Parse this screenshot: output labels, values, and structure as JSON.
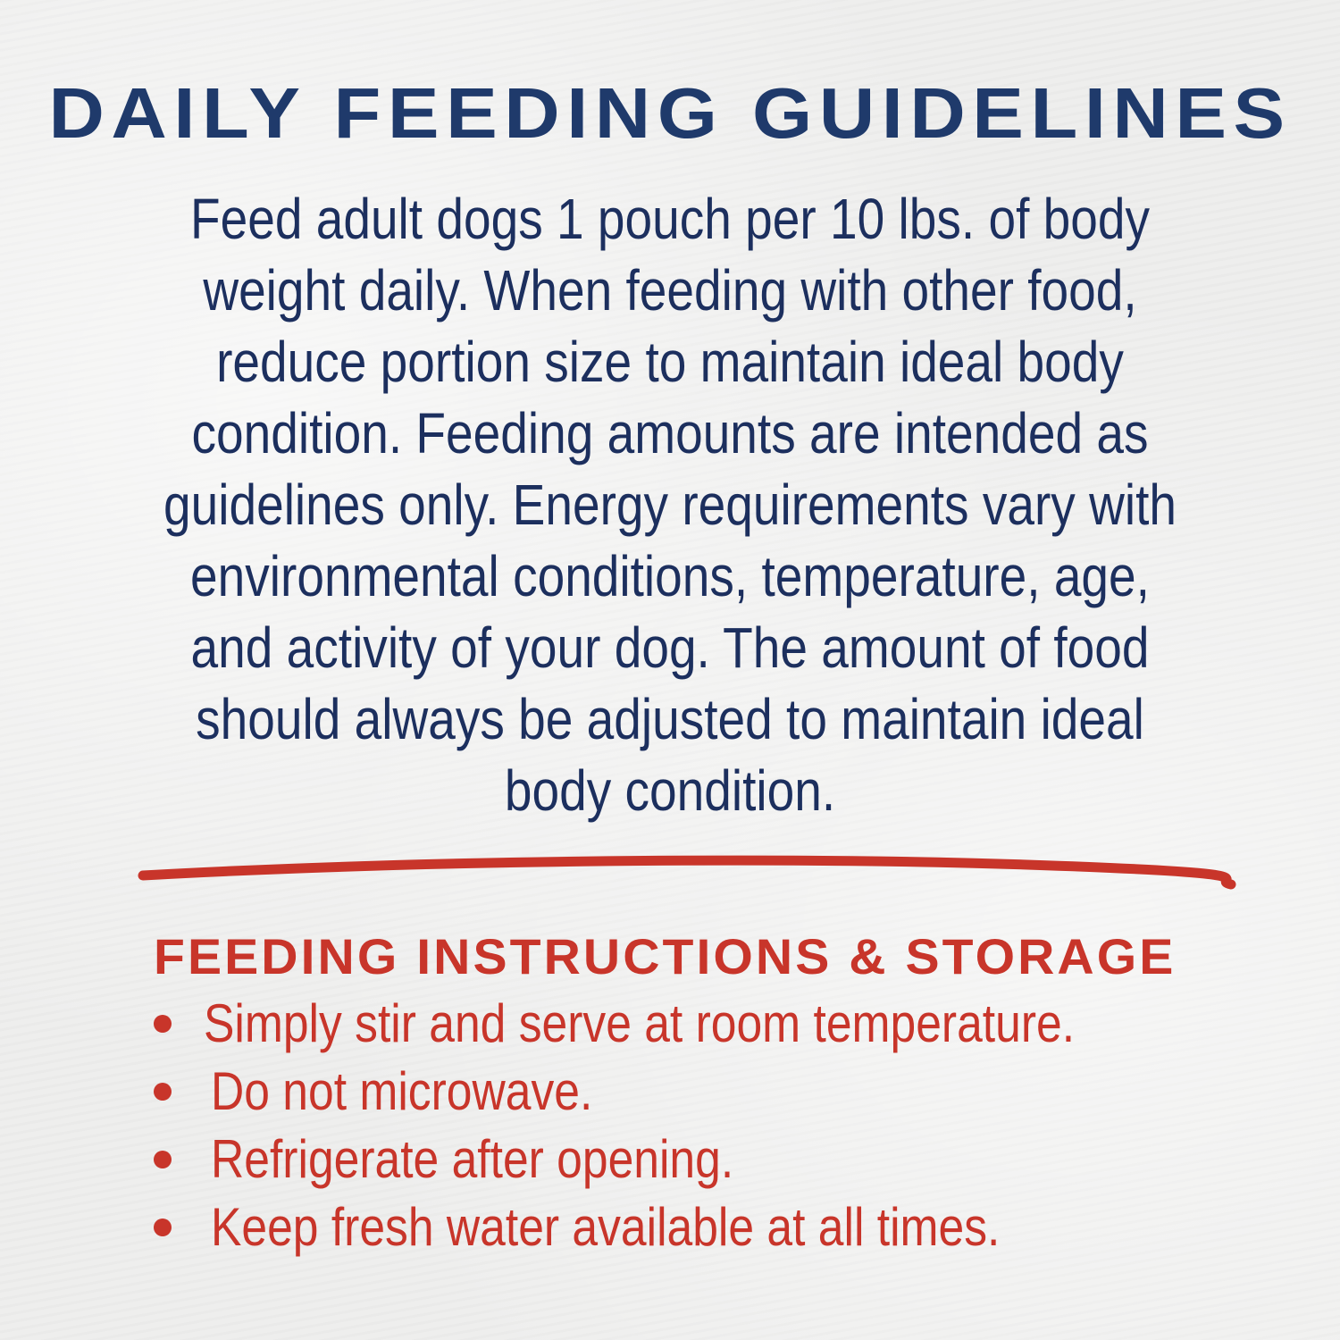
{
  "title": "DAILY FEEDING GUIDELINES",
  "guidelines_lines": [
    "Feed adult dogs 1 pouch per 10 lbs. of body",
    "weight daily. When feeding with other food,",
    "reduce portion size to maintain ideal body",
    "condition. Feeding amounts are intended as",
    "guidelines only. Energy requirements vary with",
    "environmental conditions, temperature, age,",
    "and activity of your dog. The amount of food",
    "should always be adjusted to maintain ideal",
    "body condition."
  ],
  "instructions": {
    "heading": "FEEDING INSTRUCTIONS & STORAGE",
    "items": [
      "Simply stir and serve at room temperature.",
      "Do not microwave.",
      "Refrigerate after opening.",
      "Keep fresh water available at all times."
    ]
  },
  "colors": {
    "navy": "#1f3a6b",
    "red": "#c8352a",
    "background": "#eeeeed"
  }
}
